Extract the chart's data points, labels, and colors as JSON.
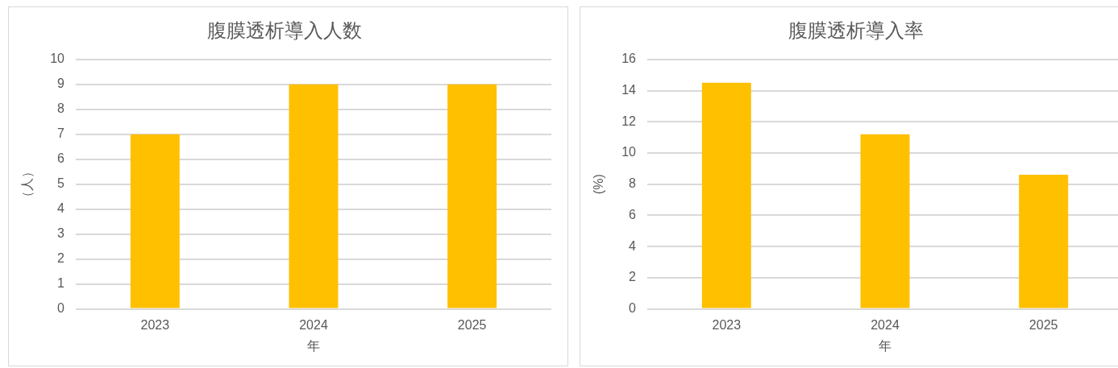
{
  "chart_data": [
    {
      "type": "bar",
      "title": "腹膜透析導入人数",
      "xlabel": "年",
      "ylabel": "（人）",
      "categories": [
        "2023",
        "2024",
        "2025"
      ],
      "values": [
        7,
        9,
        9
      ],
      "color": "#ffc000",
      "ylim": [
        0,
        10
      ],
      "yticks": [
        0,
        1,
        2,
        3,
        4,
        5,
        6,
        7,
        8,
        9,
        10
      ],
      "grid": "y",
      "legend": false
    },
    {
      "type": "bar",
      "title": "腹膜透析導入率",
      "xlabel": "年",
      "ylabel": "(%)",
      "categories": [
        "2023",
        "2024",
        "2025"
      ],
      "values": [
        14.5,
        11.2,
        8.6
      ],
      "color": "#ffc000",
      "ylim": [
        0,
        16
      ],
      "yticks": [
        0,
        2,
        4,
        6,
        8,
        10,
        12,
        14,
        16
      ],
      "grid": "y",
      "legend": false
    }
  ]
}
